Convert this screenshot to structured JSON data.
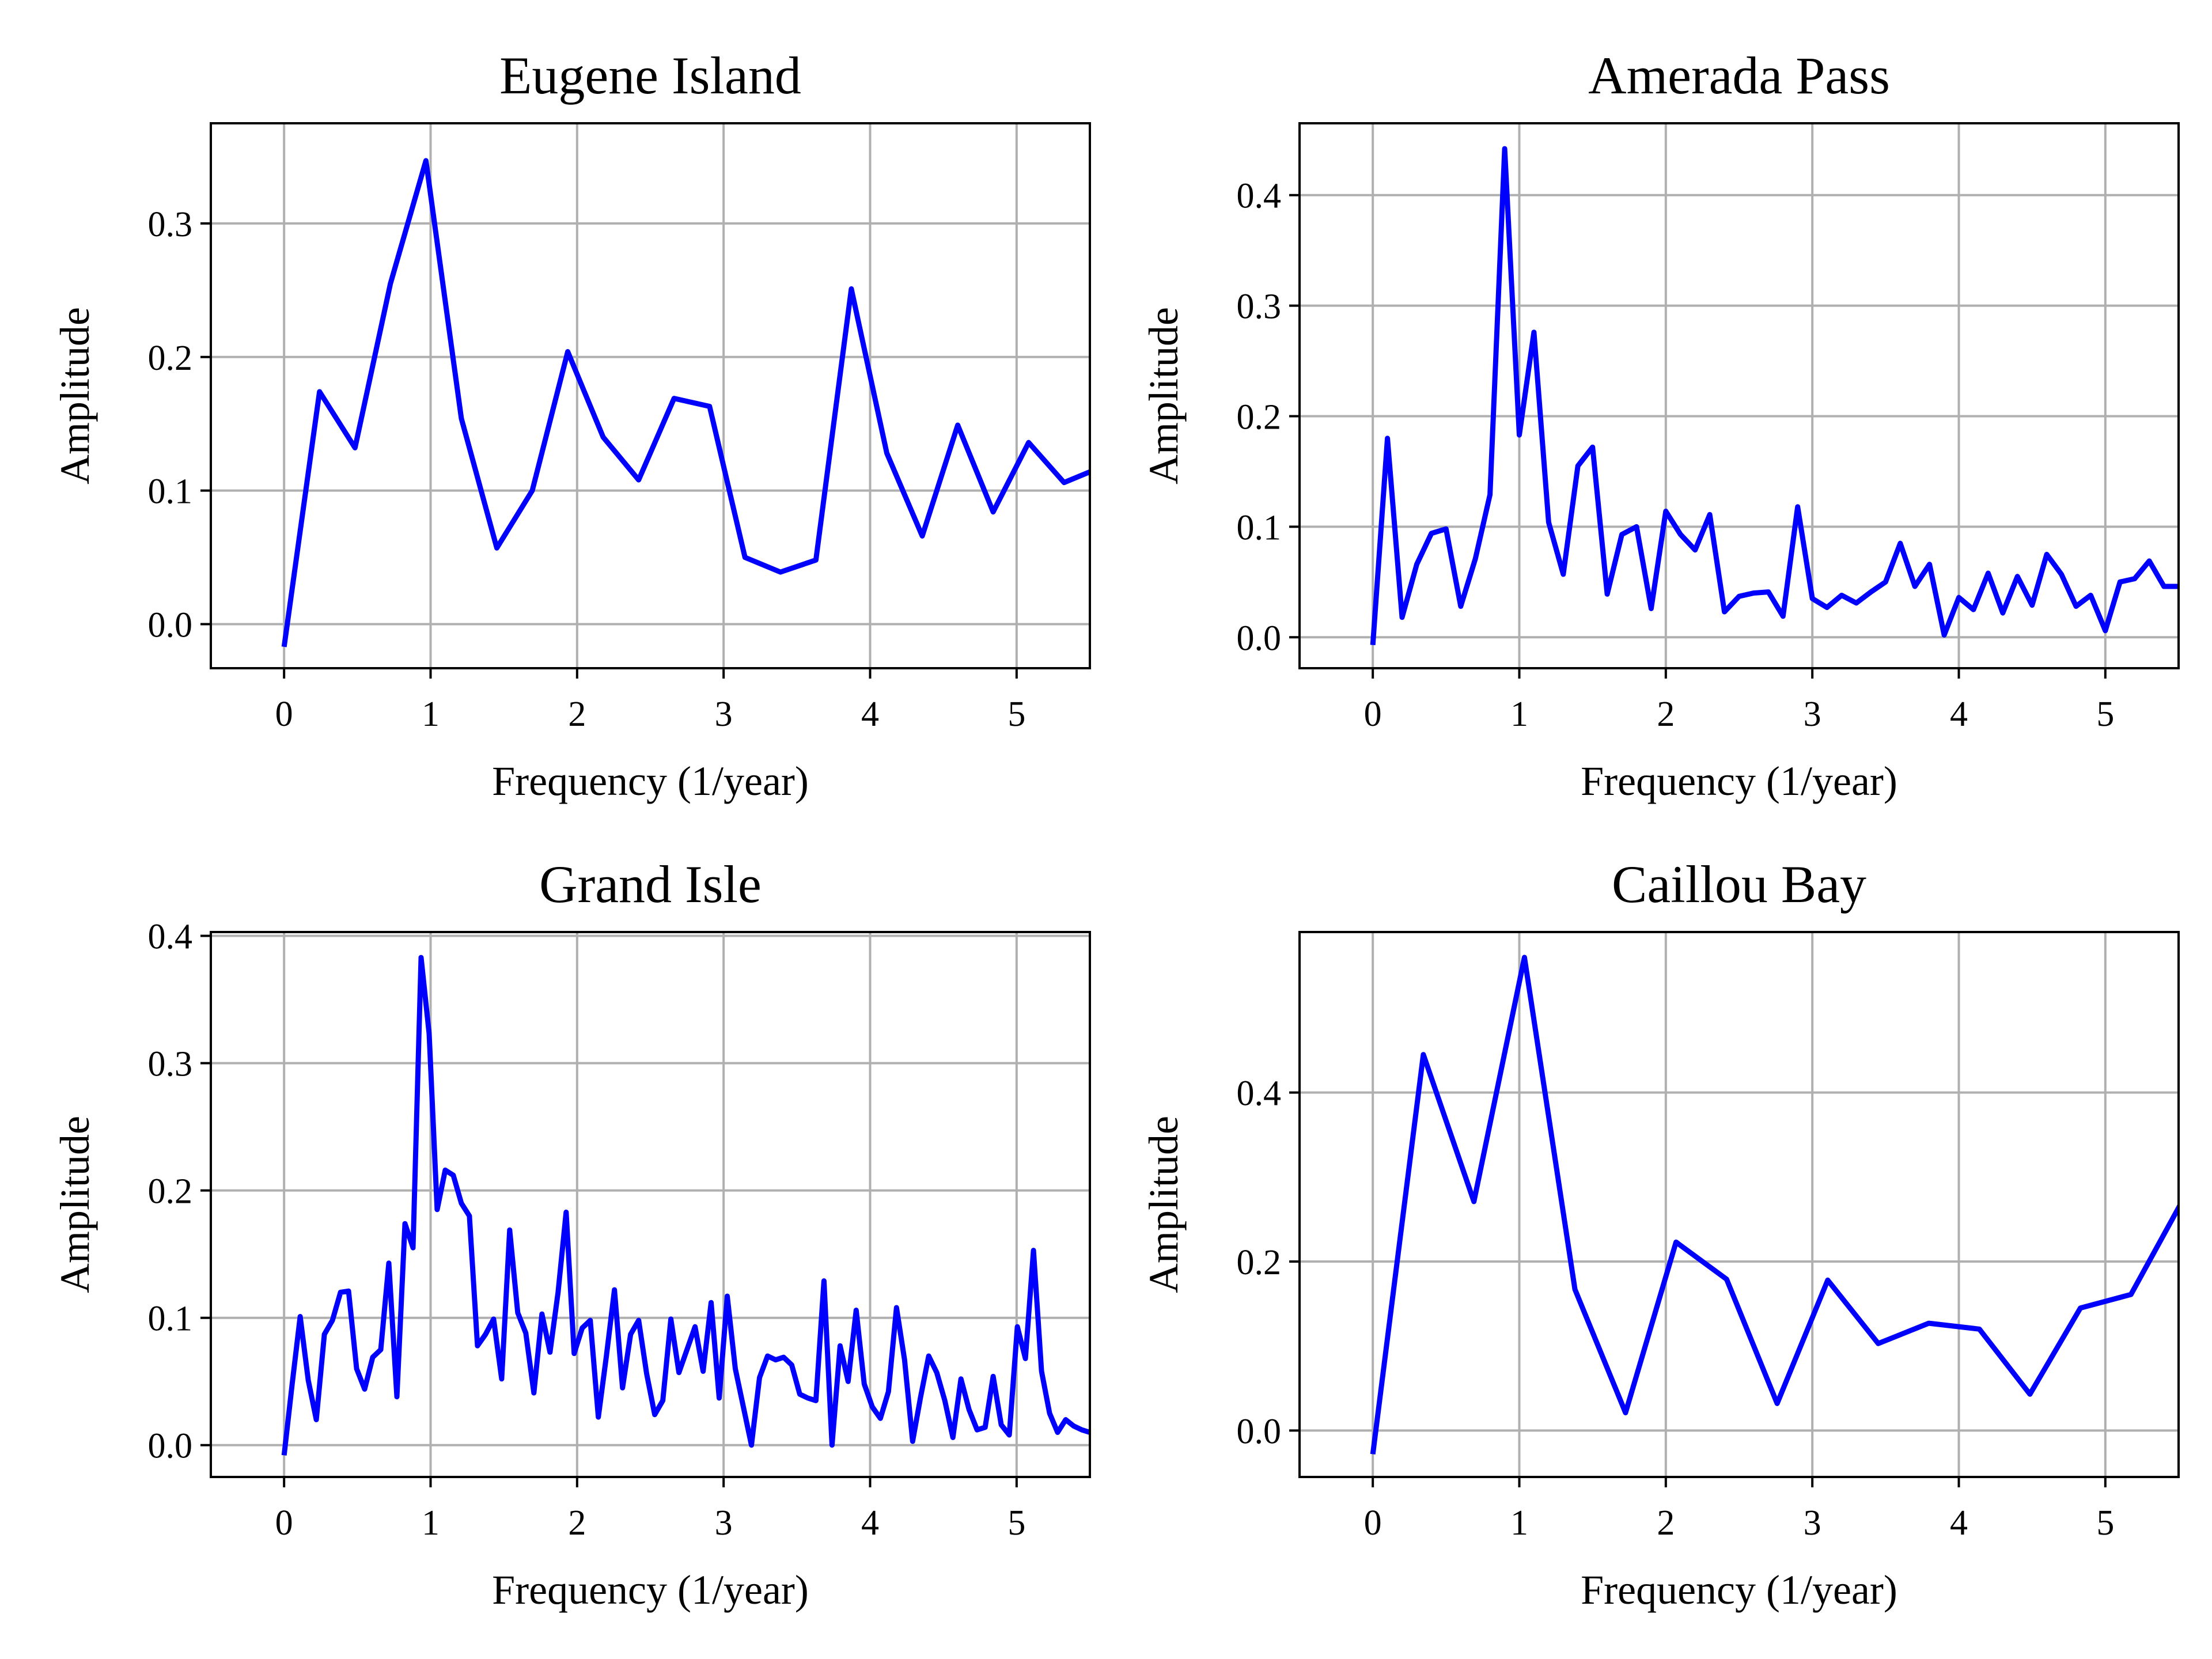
{
  "chart_data": [
    {
      "type": "line",
      "title": "Eugene Island",
      "xlabel": "Frequency (1/year)",
      "ylabel": "Amplitude",
      "xlim": [
        -0.5,
        5.5
      ],
      "ylim": [
        -0.033,
        0.375
      ],
      "xticks": [
        0,
        1,
        2,
        3,
        4,
        5
      ],
      "yticks": [
        0.0,
        0.1,
        0.2,
        0.3
      ],
      "ytick_labels": [
        "0.0",
        "0.1",
        "0.2",
        "0.3"
      ],
      "grid": true,
      "line_color": "#0000ff",
      "series": [
        {
          "x": [
            0.0,
            0.242,
            0.484,
            0.726,
            0.968,
            1.21,
            1.452,
            1.694,
            1.936,
            2.178,
            2.42,
            2.662,
            2.904,
            3.146,
            3.388,
            3.63,
            3.872,
            4.114,
            4.356,
            4.598,
            4.84,
            5.082,
            5.324,
            5.566
          ],
          "y": [
            -0.017,
            0.174,
            0.132,
            0.255,
            0.347,
            0.154,
            0.057,
            0.1,
            0.204,
            0.14,
            0.108,
            0.169,
            0.163,
            0.05,
            0.039,
            0.048,
            0.251,
            0.128,
            0.066,
            0.149,
            0.084,
            0.136,
            0.106,
            0.117
          ]
        }
      ]
    },
    {
      "type": "line",
      "title": "Amerada Pass",
      "xlabel": "Frequency (1/year)",
      "ylabel": "Amplitude",
      "xlim": [
        -0.5,
        5.5
      ],
      "ylim": [
        -0.028,
        0.465
      ],
      "xticks": [
        0,
        1,
        2,
        3,
        4,
        5
      ],
      "yticks": [
        0.0,
        0.1,
        0.2,
        0.3,
        0.4
      ],
      "ytick_labels": [
        "0.0",
        "0.1",
        "0.2",
        "0.3",
        "0.4"
      ],
      "grid": true,
      "line_color": "#0000ff",
      "series": [
        {
          "x": [
            0.0,
            0.1,
            0.2,
            0.3,
            0.4,
            0.5,
            0.6,
            0.7,
            0.8,
            0.9,
            1.0,
            1.1,
            1.2,
            1.3,
            1.4,
            1.5,
            1.6,
            1.7,
            1.8,
            1.9,
            2.0,
            2.1,
            2.2,
            2.3,
            2.4,
            2.5,
            2.6,
            2.7,
            2.8,
            2.9,
            3.0,
            3.1,
            3.2,
            3.3,
            3.4,
            3.5,
            3.6,
            3.7,
            3.8,
            3.9,
            4.0,
            4.1,
            4.2,
            4.3,
            4.4,
            4.5,
            4.6,
            4.7,
            4.8,
            4.9,
            5.0,
            5.1,
            5.2,
            5.3,
            5.4,
            5.5
          ],
          "y": [
            -0.007,
            0.18,
            0.018,
            0.066,
            0.094,
            0.098,
            0.028,
            0.071,
            0.129,
            0.442,
            0.183,
            0.276,
            0.104,
            0.057,
            0.155,
            0.172,
            0.039,
            0.093,
            0.1,
            0.026,
            0.114,
            0.093,
            0.079,
            0.111,
            0.023,
            0.037,
            0.04,
            0.041,
            0.019,
            0.118,
            0.035,
            0.027,
            0.038,
            0.031,
            0.041,
            0.05,
            0.085,
            0.046,
            0.066,
            0.002,
            0.036,
            0.025,
            0.058,
            0.022,
            0.055,
            0.029,
            0.075,
            0.057,
            0.028,
            0.038,
            0.006,
            0.05,
            0.053,
            0.069,
            0.046,
            0.046
          ]
        }
      ]
    },
    {
      "type": "line",
      "title": "Grand Isle",
      "xlabel": "Frequency (1/year)",
      "ylabel": "Amplitude",
      "xlim": [
        -0.5,
        5.5
      ],
      "ylim": [
        -0.025,
        0.403
      ],
      "xticks": [
        0,
        1,
        2,
        3,
        4,
        5
      ],
      "yticks": [
        0.0,
        0.1,
        0.2,
        0.3,
        0.4
      ],
      "ytick_labels": [
        "0.0",
        "0.1",
        "0.2",
        "0.3",
        "0.4"
      ],
      "grid": true,
      "line_color": "#0000ff",
      "series": [
        {
          "x": [
            0.0,
            0.055,
            0.11,
            0.165,
            0.22,
            0.275,
            0.33,
            0.385,
            0.44,
            0.495,
            0.55,
            0.605,
            0.66,
            0.715,
            0.77,
            0.825,
            0.88,
            0.935,
            0.99,
            1.045,
            1.1,
            1.155,
            1.21,
            1.265,
            1.32,
            1.375,
            1.43,
            1.485,
            1.54,
            1.595,
            1.65,
            1.705,
            1.76,
            1.815,
            1.87,
            1.925,
            1.98,
            2.035,
            2.09,
            2.145,
            2.2,
            2.255,
            2.31,
            2.365,
            2.42,
            2.475,
            2.53,
            2.585,
            2.64,
            2.695,
            2.75,
            2.805,
            2.86,
            2.915,
            2.97,
            3.025,
            3.08,
            3.135,
            3.19,
            3.245,
            3.3,
            3.355,
            3.41,
            3.465,
            3.52,
            3.575,
            3.63,
            3.685,
            3.74,
            3.795,
            3.85,
            3.905,
            3.96,
            4.015,
            4.07,
            4.125,
            4.18,
            4.235,
            4.29,
            4.345,
            4.4,
            4.455,
            4.51,
            4.565,
            4.62,
            4.675,
            4.73,
            4.785,
            4.84,
            4.895,
            4.95,
            5.005,
            5.06,
            5.115,
            5.17,
            5.225,
            5.28,
            5.335,
            5.39,
            5.445,
            5.5
          ],
          "y": [
            -0.008,
            0.048,
            0.101,
            0.051,
            0.02,
            0.087,
            0.098,
            0.12,
            0.121,
            0.06,
            0.044,
            0.069,
            0.075,
            0.143,
            0.038,
            0.174,
            0.155,
            0.383,
            0.323,
            0.185,
            0.216,
            0.212,
            0.19,
            0.18,
            0.078,
            0.087,
            0.099,
            0.052,
            0.169,
            0.104,
            0.088,
            0.041,
            0.103,
            0.073,
            0.12,
            0.183,
            0.072,
            0.092,
            0.098,
            0.022,
            0.07,
            0.122,
            0.045,
            0.087,
            0.098,
            0.056,
            0.024,
            0.035,
            0.099,
            0.057,
            0.075,
            0.093,
            0.058,
            0.112,
            0.037,
            0.117,
            0.06,
            0.03,
            0.0,
            0.053,
            0.07,
            0.067,
            0.069,
            0.063,
            0.04,
            0.037,
            0.035,
            0.129,
            0.0,
            0.078,
            0.05,
            0.106,
            0.048,
            0.03,
            0.021,
            0.042,
            0.108,
            0.067,
            0.003,
            0.038,
            0.07,
            0.057,
            0.035,
            0.006,
            0.052,
            0.028,
            0.012,
            0.014,
            0.054,
            0.016,
            0.008,
            0.093,
            0.068,
            0.153,
            0.058,
            0.025,
            0.01,
            0.02,
            0.015,
            0.012,
            0.01
          ]
        }
      ]
    },
    {
      "type": "line",
      "title": "Caillou Bay",
      "xlabel": "Frequency (1/year)",
      "ylabel": "Amplitude",
      "xlim": [
        -0.5,
        5.5
      ],
      "ylim": [
        -0.055,
        0.59
      ],
      "xticks": [
        0,
        1,
        2,
        3,
        4,
        5
      ],
      "yticks": [
        0.0,
        0.2,
        0.4
      ],
      "ytick_labels": [
        "0.0",
        "0.2",
        "0.4"
      ],
      "grid": true,
      "line_color": "#0000ff",
      "series": [
        {
          "x": [
            0.0,
            0.345,
            0.69,
            1.035,
            1.38,
            1.725,
            2.07,
            2.415,
            2.76,
            3.105,
            3.45,
            3.795,
            4.14,
            4.485,
            4.83,
            5.175,
            5.52
          ],
          "y": [
            -0.028,
            0.445,
            0.271,
            0.56,
            0.167,
            0.021,
            0.223,
            0.179,
            0.032,
            0.178,
            0.103,
            0.127,
            0.12,
            0.043,
            0.145,
            0.161,
            0.27
          ]
        }
      ]
    }
  ]
}
